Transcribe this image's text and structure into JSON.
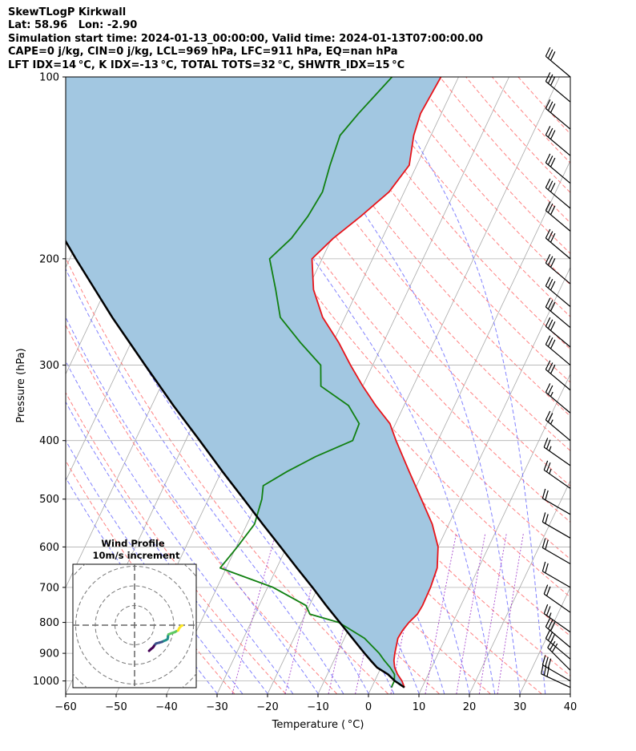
{
  "header": {
    "lines": [
      "SkewTLogP Kirkwall",
      "Lat: 58.96   Lon: -2.90",
      "Simulation start time: 2024-01-13_00:00:00, Valid time: 2024-01-13T07:00:00.00",
      "CAPE=0 j/kg, CIN=0 j/kg, LCL=969 hPa, LFC=911 hPa, EQ=nan hPa",
      "LFT IDX=14 °C, K IDX=-13 °C, TOTAL TOTS=32 °C, SHWTR_IDX=15 °C"
    ]
  },
  "chart_data": {
    "type": "line",
    "title": "",
    "xlabel": "Temperature ( °C)",
    "ylabel": "Pressure (hPa)",
    "xlim": [
      -60,
      40
    ],
    "ylim": [
      1050,
      100
    ],
    "yscale": "log",
    "skew": true,
    "grid": true,
    "x_ticks": [
      -60,
      -50,
      -40,
      -30,
      -20,
      -10,
      0,
      10,
      20,
      30,
      40
    ],
    "x_tick_labels": [
      "−60",
      "−50",
      "−40",
      "−30",
      "−20",
      "−10",
      "0",
      "10",
      "20",
      "30",
      "40"
    ],
    "y_ticks": [
      100,
      200,
      300,
      400,
      500,
      600,
      700,
      800,
      900,
      1000
    ],
    "y_tick_labels": [
      "100",
      "200",
      "300",
      "400",
      "500",
      "600",
      "700",
      "800",
      "900",
      "1000"
    ],
    "series": [
      {
        "role": "temperature",
        "color": "#e8141a",
        "points": [
          [
            1025,
            6.5
          ],
          [
            1000,
            5.4
          ],
          [
            975,
            3.9
          ],
          [
            950,
            2.7
          ],
          [
            925,
            1.9
          ],
          [
            900,
            1.4
          ],
          [
            875,
            1.0
          ],
          [
            850,
            0.6
          ],
          [
            825,
            0.8
          ],
          [
            800,
            1.3
          ],
          [
            775,
            2.2
          ],
          [
            750,
            2.4
          ],
          [
            700,
            2.3
          ],
          [
            650,
            1.8
          ],
          [
            600,
            0.0
          ],
          [
            550,
            -3.3
          ],
          [
            500,
            -7.8
          ],
          [
            450,
            -12.8
          ],
          [
            400,
            -18.3
          ],
          [
            375,
            -21.1
          ],
          [
            350,
            -25.6
          ],
          [
            325,
            -30.0
          ],
          [
            300,
            -34.4
          ],
          [
            275,
            -38.9
          ],
          [
            250,
            -44.4
          ],
          [
            225,
            -48.8
          ],
          [
            200,
            -52.0
          ],
          [
            185,
            -49.7
          ],
          [
            170,
            -46.3
          ],
          [
            155,
            -43.0
          ],
          [
            140,
            -41.5
          ],
          [
            125,
            -43.4
          ],
          [
            115,
            -44.1
          ],
          [
            100,
            -43.5
          ]
        ]
      },
      {
        "role": "dewpoint",
        "color": "#118011",
        "points": [
          [
            1025,
            3.9
          ],
          [
            1000,
            3.9
          ],
          [
            975,
            3.3
          ],
          [
            950,
            1.8
          ],
          [
            925,
            0.0
          ],
          [
            900,
            -1.7
          ],
          [
            850,
            -6.0
          ],
          [
            800,
            -12.6
          ],
          [
            775,
            -19.1
          ],
          [
            750,
            -20.7
          ],
          [
            700,
            -28.9
          ],
          [
            650,
            -41.2
          ],
          [
            600,
            -39.8
          ],
          [
            550,
            -38.5
          ],
          [
            500,
            -39.4
          ],
          [
            475,
            -40.4
          ],
          [
            450,
            -37.0
          ],
          [
            425,
            -32.7
          ],
          [
            400,
            -26.9
          ],
          [
            375,
            -27.2
          ],
          [
            350,
            -31.0
          ],
          [
            325,
            -38.3
          ],
          [
            300,
            -40.3
          ],
          [
            275,
            -46.5
          ],
          [
            250,
            -52.8
          ],
          [
            225,
            -56.3
          ],
          [
            200,
            -60.4
          ],
          [
            185,
            -58.0
          ],
          [
            170,
            -56.8
          ],
          [
            155,
            -56.2
          ],
          [
            140,
            -57.2
          ],
          [
            125,
            -58.0
          ],
          [
            115,
            -56.4
          ],
          [
            100,
            -53.2
          ]
        ]
      },
      {
        "role": "parcel",
        "color": "#000000",
        "points": [
          [
            1025,
            6.5
          ],
          [
            1000,
            4.0
          ],
          [
            975,
            2.0
          ],
          [
            950,
            -0.8
          ],
          [
            925,
            -2.7
          ],
          [
            900,
            -4.6
          ],
          [
            850,
            -8.4
          ],
          [
            800,
            -12.4
          ],
          [
            750,
            -16.7
          ],
          [
            700,
            -21.1
          ],
          [
            650,
            -26.0
          ],
          [
            600,
            -31.2
          ],
          [
            550,
            -36.9
          ],
          [
            500,
            -43.0
          ],
          [
            450,
            -49.8
          ],
          [
            400,
            -57.2
          ],
          [
            350,
            -65.7
          ],
          [
            300,
            -75.1
          ],
          [
            250,
            -86.1
          ],
          [
            200,
            -98.8
          ],
          [
            150,
            -114.6
          ],
          [
            100,
            -134.5
          ]
        ]
      }
    ],
    "fill_between": {
      "between": [
        "temperature",
        "parcel"
      ],
      "color": "#a2c7e1"
    },
    "wind_barbs": {
      "pressures": [
        100,
        110,
        122,
        135,
        150,
        165,
        180,
        200,
        220,
        240,
        260,
        280,
        300,
        330,
        360,
        400,
        440,
        480,
        530,
        580,
        640,
        700,
        770,
        830,
        880,
        920,
        960,
        1000,
        1025
      ],
      "speed_knots": [
        30,
        30,
        30,
        30,
        30,
        30,
        30,
        30,
        30,
        30,
        30,
        30,
        30,
        30,
        25,
        25,
        25,
        25,
        20,
        20,
        20,
        20,
        20,
        25,
        30,
        30,
        30,
        30,
        30
      ],
      "direction_deg": [
        310,
        310,
        310,
        310,
        310,
        310,
        310,
        310,
        310,
        310,
        310,
        310,
        310,
        310,
        310,
        310,
        305,
        305,
        300,
        300,
        300,
        300,
        305,
        305,
        310,
        310,
        315,
        300,
        295
      ]
    },
    "inset": {
      "title_line1": "Wind Profile",
      "title_line2": "10m/s increment",
      "rings": 3,
      "hodograph_u": [
        -0.2,
        -0.3,
        -0.8,
        -1.6,
        -2.7,
        -3.1,
        -3.5,
        -4.1,
        -4.7,
        -5.6,
        -6.2,
        -7.1,
        -7.6,
        -8.1,
        -8.5,
        -8.9,
        -9.3,
        -10.0,
        -10.6,
        -11.1,
        -11.6,
        -12.3,
        -13.1
      ],
      "hodograph_v": [
        -24.3,
        -23.9,
        -23.4,
        -22.7,
        -22.2,
        -21.2,
        -20.6,
        -18.9,
        -17.3,
        -17.0,
        -17.0,
        -16.8,
        -16.0,
        -14.8,
        -14.0,
        -12.6,
        -11.0,
        -10.3,
        -9.9,
        -9.6,
        -9.1,
        -8.2,
        -7.4
      ],
      "colormap": [
        "#fde725",
        "#5ec962",
        "#21918c",
        "#3b528b",
        "#440154"
      ]
    },
    "background_lines": {
      "dry_adiabat_color": "#ff6b6b",
      "moist_adiabat_color": "#6b6bff",
      "mixing_ratio_color": "#9b30c8",
      "isotherm_color": "#a8a8a8"
    }
  }
}
